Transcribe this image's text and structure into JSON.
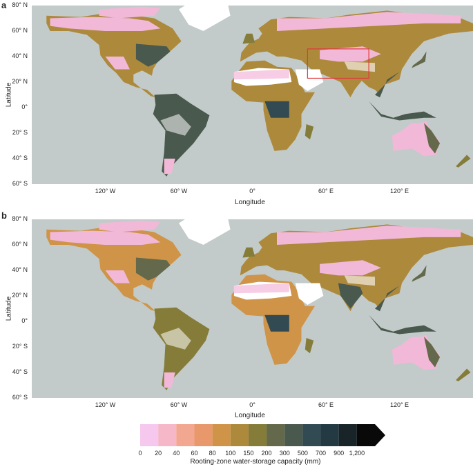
{
  "panels": [
    {
      "label": "a",
      "ylabel": "Latitude",
      "xlabel": "Longitude",
      "lat_ticks": [
        "80° N",
        "60° N",
        "40° N",
        "20° N",
        "0°",
        "20° S",
        "40° S",
        "60° S"
      ],
      "lon_ticks": [
        "120° W",
        "60° W",
        "0°",
        "60° E",
        "120° E"
      ]
    },
    {
      "label": "b",
      "ylabel": "Latitude",
      "xlabel": "Longitude",
      "lat_ticks": [
        "80° N",
        "60° N",
        "40° N",
        "20° N",
        "0°",
        "20° S",
        "40° S",
        "60° S"
      ],
      "lon_ticks": [
        "120° W",
        "60° W",
        "0°",
        "60° E",
        "120° E"
      ]
    }
  ],
  "highlight_box": {
    "lon_min": 45,
    "lon_max": 95,
    "lat_min": 23,
    "lat_max": 46,
    "color": "#e0393e"
  },
  "colorbar": {
    "title": "Rooting-zone water-storage capacity (mm)",
    "ticks": [
      "0",
      "20",
      "40",
      "60",
      "80",
      "100",
      "150",
      "200",
      "300",
      "500",
      "700",
      "900",
      "1,200"
    ],
    "colors": [
      "#f6c8ee",
      "#f6b8c8",
      "#f2a790",
      "#e8986a",
      "#cf9448",
      "#ad893c",
      "#857c3a",
      "#63694a",
      "#4a594e",
      "#324a52",
      "#243a42",
      "#182428",
      "#090909"
    ]
  },
  "colors": {
    "ocean": "#c2cbc9",
    "ice": "#ffffff",
    "low": "#f2b8d8",
    "mid": "#b98a4a",
    "high": "#45544c"
  }
}
